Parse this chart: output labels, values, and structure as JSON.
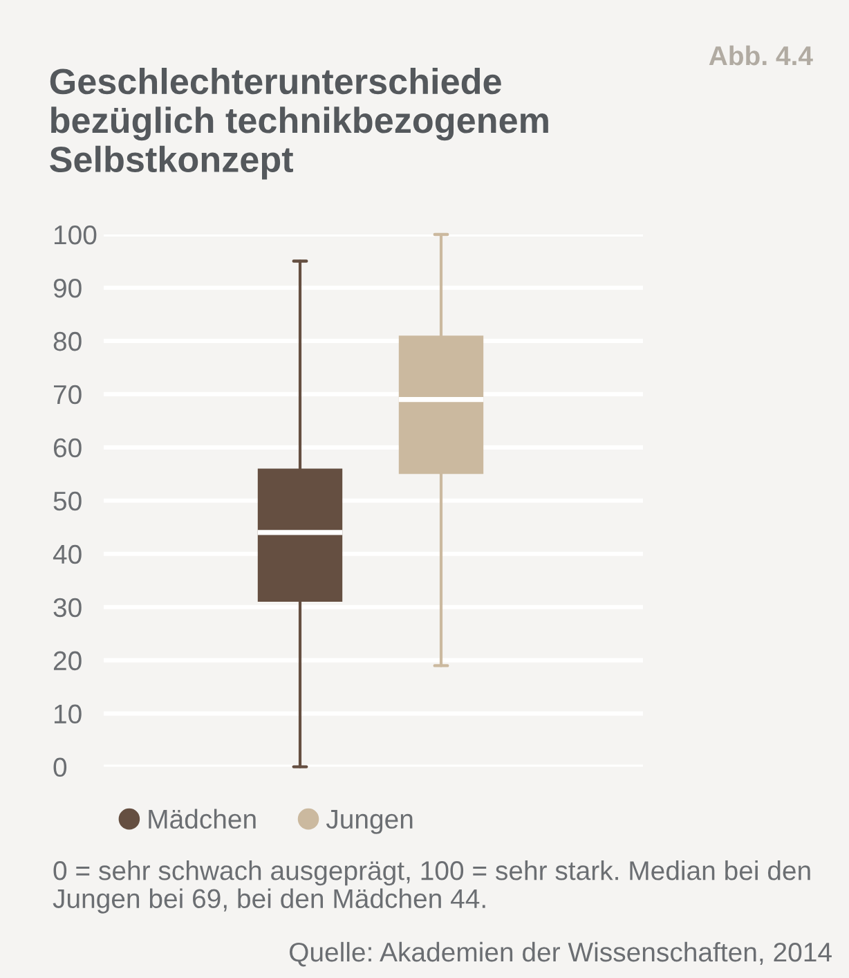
{
  "chart_data": {
    "type": "box",
    "title": "Geschlechterunterschiede bezüglich technikbezogenem Selbstkonzept",
    "categories": [
      null
    ],
    "series": [
      {
        "name": "Mädchen",
        "color": "#654f41",
        "boxes": [
          {
            "low": 0,
            "q1": 31,
            "median": 44,
            "q3": 56,
            "high": 95
          }
        ]
      },
      {
        "name": "Jungen",
        "color": "#cbb99f",
        "boxes": [
          {
            "low": 19,
            "q1": 55,
            "median": 69,
            "q3": 81,
            "high": 100
          }
        ]
      }
    ],
    "ylim": [
      0,
      100
    ],
    "yticks": [
      0,
      10,
      20,
      30,
      40,
      50,
      60,
      70,
      80,
      90,
      100
    ],
    "grid": "y",
    "legend": "bottom",
    "annotations": [
      "Abb. 4.4",
      "0 = sehr schwach ausgeprägt, 100 = sehr stark. Median bei den Jungen bei 69, bei den Mädchen 44.",
      "Quelle: Akademien der Wissenschaften, 2014"
    ]
  }
}
